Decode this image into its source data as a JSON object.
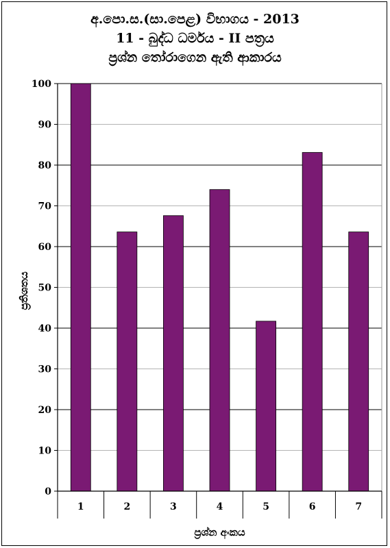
{
  "chart_data": {
    "type": "bar",
    "title_lines": [
      "අ.පො.ස.(සා.පෙළ) විභාගය - 2013",
      "11 - බුද්ධ ධර්මය - II පත්‍රය",
      "ප්‍රශ්න තෝරාගෙන ඇති ආකාරය"
    ],
    "xlabel": "ප්‍රශ්න අංකය",
    "ylabel": "ප්‍රතිශතය",
    "categories": [
      "1",
      "2",
      "3",
      "4",
      "5",
      "6",
      "7"
    ],
    "values": [
      100,
      63.6,
      67.6,
      74,
      41.7,
      83.1,
      63.6
    ],
    "yticks": [
      "0",
      "10",
      "20",
      "30",
      "40",
      "50",
      "60",
      "70",
      "80",
      "90",
      "100"
    ],
    "ylim": [
      0,
      100
    ],
    "grid": true,
    "bar_color": "#7a1a73",
    "grid_color": "#000000",
    "plot_background": "#ffffff"
  }
}
